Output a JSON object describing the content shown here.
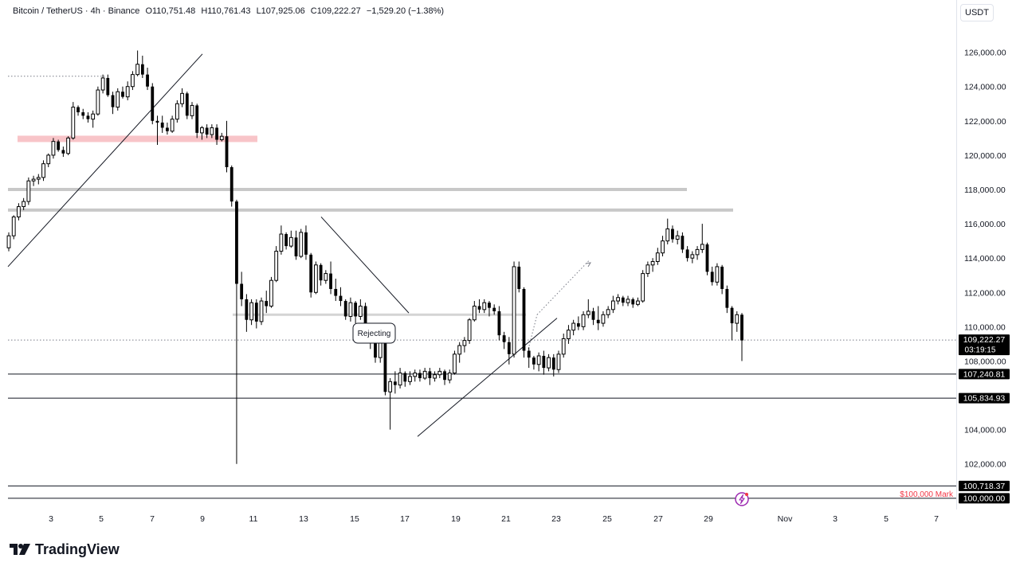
{
  "header": {
    "symbol": "Bitcoin / TetherUS · 4h · Binance",
    "open": "O110,751.48",
    "high": "H110,761.43",
    "low": "L107,925.06",
    "close": "C109,222.27",
    "change": "−1,529.20 (−1.38%)"
  },
  "currency_label": "USDT",
  "brand": "TradingView",
  "chart_data": {
    "type": "candlestick",
    "y_axis_ticks": [
      "126,000.00",
      "124,000.00",
      "122,000.00",
      "120,000.00",
      "118,000.00",
      "116,000.00",
      "114,000.00",
      "112,000.00",
      "110,000.00",
      "108,000.00",
      "104,000.00",
      "102,000.00"
    ],
    "y_tick_values": [
      126000,
      124000,
      122000,
      120000,
      118000,
      116000,
      114000,
      112000,
      110000,
      108000,
      104000,
      102000
    ],
    "x_axis_labels": [
      "3",
      "5",
      "7",
      "9",
      "11",
      "13",
      "15",
      "17",
      "19",
      "21",
      "23",
      "25",
      "27",
      "29",
      "Nov",
      "3",
      "5",
      "7"
    ],
    "price_tags": [
      {
        "label": "109,222.27",
        "sub": "03:19:15",
        "value": 109222.27
      },
      {
        "label": "107,240.81",
        "value": 107240.81
      },
      {
        "label": "105,834.93",
        "value": 105834.93
      },
      {
        "label": "100,718.37",
        "value": 100718.37
      },
      {
        "label": "100,000.00",
        "value": 100000
      }
    ],
    "annotations": {
      "rejecting": "Rejecting",
      "mark": "$100,000 Mark"
    },
    "colors": {
      "candle": "#000000",
      "zone": "#f8c4c8",
      "gray_level": "#c8c8c8",
      "mark_text": "#f23645",
      "price_tag_bg": "#000000",
      "alert": "#9c27b0"
    },
    "candles": [
      [
        114600,
        115500,
        114400,
        115300
      ],
      [
        115300,
        116500,
        115100,
        116400
      ],
      [
        116400,
        117200,
        116200,
        117000
      ],
      [
        117000,
        117500,
        116800,
        117300
      ],
      [
        117300,
        118700,
        117100,
        118500
      ],
      [
        118500,
        118800,
        118200,
        118600
      ],
      [
        118600,
        118900,
        118300,
        118700
      ],
      [
        118700,
        119700,
        118500,
        119500
      ],
      [
        119500,
        120100,
        119300,
        120000
      ],
      [
        120000,
        121000,
        119800,
        120800
      ],
      [
        120800,
        120900,
        120200,
        120300
      ],
      [
        120300,
        120500,
        119900,
        120100
      ],
      [
        120100,
        121100,
        120000,
        121000
      ],
      [
        121000,
        123100,
        120900,
        122800
      ],
      [
        122800,
        122900,
        122300,
        122500
      ],
      [
        122500,
        122700,
        122100,
        122300
      ],
      [
        122300,
        122500,
        121900,
        122100
      ],
      [
        122100,
        122600,
        121600,
        122400
      ],
      [
        122400,
        124000,
        122300,
        123800
      ],
      [
        123800,
        124700,
        123600,
        124500
      ],
      [
        124500,
        124700,
        123400,
        123500
      ],
      [
        123500,
        123700,
        122400,
        122800
      ],
      [
        122800,
        123900,
        122600,
        123700
      ],
      [
        123700,
        124000,
        123300,
        123400
      ],
      [
        123400,
        124300,
        123200,
        124000
      ],
      [
        124000,
        124900,
        123800,
        124700
      ],
      [
        124700,
        126100,
        124600,
        125300
      ],
      [
        125300,
        125800,
        124500,
        124700
      ],
      [
        124700,
        125100,
        123800,
        124000
      ],
      [
        124000,
        124200,
        121800,
        122000
      ],
      [
        122000,
        122300,
        120600,
        121900
      ],
      [
        121900,
        122300,
        121300,
        121600
      ],
      [
        121600,
        121900,
        121200,
        121400
      ],
      [
        121400,
        122300,
        121300,
        122100
      ],
      [
        122100,
        123200,
        121900,
        123000
      ],
      [
        123000,
        123900,
        122800,
        123600
      ],
      [
        123600,
        123700,
        122100,
        122300
      ],
      [
        122300,
        123100,
        122100,
        122900
      ],
      [
        122900,
        123000,
        121000,
        121300
      ],
      [
        121300,
        121700,
        120900,
        121600
      ],
      [
        121600,
        121800,
        121000,
        121200
      ],
      [
        121200,
        121800,
        121000,
        121600
      ],
      [
        121600,
        121800,
        120600,
        120900
      ],
      [
        120900,
        121300,
        120800,
        121100
      ],
      [
        121100,
        122000,
        119000,
        119300
      ],
      [
        119300,
        119400,
        117000,
        117300
      ],
      [
        117300,
        117400,
        102000,
        112500
      ],
      [
        112500,
        113200,
        111200,
        111600
      ],
      [
        111600,
        111900,
        109700,
        110400
      ],
      [
        110400,
        111600,
        110100,
        111400
      ],
      [
        111400,
        111600,
        109900,
        110300
      ],
      [
        110300,
        111700,
        110100,
        111500
      ],
      [
        111500,
        112100,
        110800,
        111200
      ],
      [
        111200,
        112900,
        111100,
        112700
      ],
      [
        112700,
        114700,
        112600,
        114400
      ],
      [
        114400,
        115900,
        114200,
        115400
      ],
      [
        115400,
        115500,
        114500,
        114700
      ],
      [
        114700,
        115600,
        114600,
        115200
      ],
      [
        115200,
        115600,
        113900,
        114100
      ],
      [
        114100,
        115700,
        114000,
        115500
      ],
      [
        115500,
        115900,
        113900,
        114200
      ],
      [
        114200,
        114300,
        111700,
        112000
      ],
      [
        112000,
        113800,
        111900,
        113600
      ],
      [
        113600,
        113700,
        112400,
        112700
      ],
      [
        112700,
        113300,
        112500,
        113100
      ],
      [
        113100,
        113800,
        111900,
        112200
      ],
      [
        112200,
        112800,
        111500,
        111800
      ],
      [
        111800,
        112300,
        111200,
        111500
      ],
      [
        111500,
        111600,
        110400,
        110600
      ],
      [
        110600,
        111700,
        110300,
        111400
      ],
      [
        111400,
        111500,
        110200,
        110600
      ],
      [
        110600,
        111600,
        110400,
        111200
      ],
      [
        111200,
        111400,
        109300,
        109800
      ],
      [
        109800,
        110200,
        108700,
        109200
      ],
      [
        109200,
        109600,
        107900,
        108200
      ],
      [
        108200,
        109700,
        107900,
        109400
      ],
      [
        109400,
        109500,
        106000,
        106200
      ],
      [
        106200,
        107000,
        104000,
        106800
      ],
      [
        106800,
        107400,
        106100,
        106600
      ],
      [
        106600,
        107600,
        106400,
        107300
      ],
      [
        107300,
        107400,
        106500,
        106800
      ],
      [
        106800,
        107400,
        106600,
        107100
      ],
      [
        107100,
        107500,
        106800,
        107300
      ],
      [
        107300,
        107500,
        106800,
        107000
      ],
      [
        107000,
        107600,
        106900,
        107400
      ],
      [
        107400,
        107600,
        106600,
        107000
      ],
      [
        107000,
        107400,
        106800,
        107200
      ],
      [
        107200,
        107600,
        107000,
        107400
      ],
      [
        107400,
        107500,
        106600,
        106900
      ],
      [
        106900,
        107500,
        106700,
        107300
      ],
      [
        107300,
        108600,
        107200,
        108400
      ],
      [
        108400,
        109100,
        107900,
        108900
      ],
      [
        108900,
        109400,
        108500,
        109200
      ],
      [
        109200,
        110500,
        109000,
        110400
      ],
      [
        110400,
        111500,
        110300,
        111200
      ],
      [
        111200,
        111600,
        110800,
        111000
      ],
      [
        111000,
        111600,
        110800,
        111400
      ],
      [
        111400,
        111500,
        110600,
        111100
      ],
      [
        111100,
        111300,
        110700,
        110900
      ],
      [
        110900,
        111200,
        109200,
        109500
      ],
      [
        109500,
        109700,
        108700,
        109100
      ],
      [
        109100,
        109400,
        107800,
        108400
      ],
      [
        108400,
        113800,
        108200,
        113500
      ],
      [
        113500,
        113800,
        112000,
        112200
      ],
      [
        112200,
        112300,
        108200,
        108600
      ],
      [
        108600,
        108800,
        107600,
        108200
      ],
      [
        108200,
        108300,
        107500,
        107800
      ],
      [
        107800,
        108500,
        107400,
        108300
      ],
      [
        108300,
        108600,
        107200,
        107600
      ],
      [
        107600,
        108400,
        107400,
        108200
      ],
      [
        108200,
        108400,
        107100,
        107500
      ],
      [
        107500,
        108600,
        107300,
        108400
      ],
      [
        108400,
        109600,
        108200,
        109300
      ],
      [
        109300,
        110100,
        109000,
        109800
      ],
      [
        109800,
        110400,
        109500,
        110200
      ],
      [
        110200,
        110600,
        109800,
        110000
      ],
      [
        110000,
        110900,
        109800,
        110700
      ],
      [
        110700,
        111600,
        110500,
        110900
      ],
      [
        110900,
        111100,
        110100,
        110400
      ],
      [
        110400,
        111200,
        109800,
        110200
      ],
      [
        110200,
        110900,
        110000,
        110700
      ],
      [
        110700,
        111200,
        110500,
        111000
      ],
      [
        111000,
        111800,
        110800,
        111500
      ],
      [
        111500,
        111900,
        111300,
        111700
      ],
      [
        111700,
        111800,
        111200,
        111400
      ],
      [
        111400,
        111800,
        111200,
        111600
      ],
      [
        111600,
        111700,
        111100,
        111300
      ],
      [
        111300,
        111700,
        111200,
        111500
      ],
      [
        111500,
        113300,
        111400,
        113100
      ],
      [
        113100,
        113800,
        112900,
        113600
      ],
      [
        113600,
        114000,
        113200,
        113800
      ],
      [
        113800,
        114600,
        113600,
        114300
      ],
      [
        114300,
        115300,
        114100,
        115000
      ],
      [
        115000,
        116300,
        114800,
        115700
      ],
      [
        115700,
        115900,
        114900,
        115100
      ],
      [
        115100,
        115600,
        114800,
        115300
      ],
      [
        115300,
        115500,
        114300,
        114500
      ],
      [
        114500,
        114700,
        113800,
        114000
      ],
      [
        114000,
        114400,
        113700,
        114200
      ],
      [
        114200,
        114700,
        113900,
        114500
      ],
      [
        114500,
        116000,
        114300,
        114800
      ],
      [
        114800,
        114900,
        113000,
        113200
      ],
      [
        113200,
        113500,
        112400,
        112600
      ],
      [
        112600,
        113700,
        112400,
        113500
      ],
      [
        113500,
        113600,
        111900,
        112200
      ],
      [
        112200,
        112400,
        110800,
        111100
      ],
      [
        111100,
        111200,
        109200,
        110200
      ],
      [
        110200,
        110900,
        109700,
        110700
      ],
      [
        110700,
        110800,
        108000,
        109200
      ]
    ],
    "trend_lines": [
      {
        "x1": 10,
        "v1": 113500,
        "x2": 254,
        "v2": 125900
      },
      {
        "x1": 403,
        "v1": 116400,
        "x2": 513,
        "v2": 110800
      },
      {
        "x1": 524,
        "v1": 103600,
        "x2": 699,
        "v2": 110500
      }
    ],
    "dotted_lines": [
      {
        "x1": 10,
        "v1": 124600,
        "x2": 134,
        "v2": 124600
      },
      {
        "x1": 663,
        "v1": 108700,
        "x2": 674,
        "v2": 110700
      },
      {
        "x1": 674,
        "v1": 110700,
        "x2": 740,
        "v2": 113900
      },
      {
        "x1": 10,
        "v1": 109222.27,
        "x2": 1200,
        "v2": 109222.27
      }
    ],
    "levels": [
      {
        "x1": 22,
        "x2": 323,
        "v": 120950,
        "kind": "zone"
      },
      {
        "x1": 10,
        "x2": 862,
        "v": 118000,
        "kind": "gray"
      },
      {
        "x1": 10,
        "x2": 920,
        "v": 116800,
        "kind": "gray"
      },
      {
        "x1": 292,
        "x2": 660,
        "v": 110700,
        "kind": "gray-thin"
      },
      {
        "x1": 10,
        "x2": 1200,
        "v": 107240.81,
        "kind": "black"
      },
      {
        "x1": 10,
        "x2": 1200,
        "v": 105834.93,
        "kind": "black"
      },
      {
        "x1": 10,
        "x2": 1200,
        "v": 100718.37,
        "kind": "black"
      },
      {
        "x1": 10,
        "x2": 1200,
        "v": 100000,
        "kind": "black"
      }
    ]
  }
}
